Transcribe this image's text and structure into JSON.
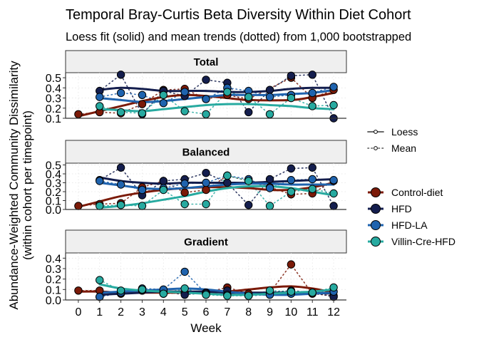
{
  "title": "Temporal Bray-Curtis Beta Diversity Within Diet Cohort",
  "subtitle": "Loess fit (solid) and mean trends (dotted) from 1,000 bootstrapped",
  "chart_data": {
    "type": "line",
    "title": "Temporal Bray-Curtis Beta Diversity Within Diet Cohort",
    "subtitle": "Loess fit (solid) and mean trends (dotted) from 1,000 bootstrapped",
    "xlabel": "Week",
    "ylabel_line1": "Abundance-Weighted Community Dissimilarity",
    "ylabel_line2": "(within cohort per timepoint)",
    "x": [
      0,
      1,
      2,
      3,
      4,
      5,
      6,
      7,
      8,
      9,
      10,
      11,
      12
    ],
    "x_ticks": [
      "0",
      "1",
      "2",
      "3",
      "4",
      "5",
      "6",
      "7",
      "8",
      "9",
      "10",
      "11",
      "12"
    ],
    "legend_line": {
      "entries": [
        {
          "label": "Loess",
          "style": "solid"
        },
        {
          "label": "Mean",
          "style": "dotted"
        }
      ]
    },
    "legend_cohort": {
      "entries": [
        {
          "label": "Control-diet",
          "color": "#7B1A08"
        },
        {
          "label": "HFD",
          "color": "#141E4E"
        },
        {
          "label": "HFD-LA",
          "color": "#1F63AE"
        },
        {
          "label": "Villin-Cre-HFD",
          "color": "#27AAA0"
        }
      ]
    },
    "panels": [
      {
        "title": "Total",
        "ylim": [
          0.1,
          0.55
        ],
        "yticks": [
          0.1,
          0.2,
          0.3,
          0.4,
          0.5
        ],
        "ytick_labels": [
          "0.1",
          "0.2",
          "0.3",
          "0.4",
          "0.5"
        ],
        "series": [
          {
            "name": "Control-diet",
            "color": "#7B1A08",
            "x": [
              0,
              1,
              2,
              3,
              4,
              5,
              6,
              7,
              8,
              10,
              11,
              12
            ],
            "mean": [
              0.14,
              0.16,
              0.15,
              0.24,
              0.38,
              0.39,
              0.29,
              0.33,
              0.29,
              0.5,
              0.3,
              0.38
            ],
            "loess": [
              0.12,
              0.17,
              0.22,
              0.27,
              0.31,
              0.33,
              0.32,
              0.3,
              0.28,
              0.28,
              0.31,
              0.35
            ]
          },
          {
            "name": "HFD",
            "color": "#141E4E",
            "x": [
              1,
              2,
              3,
              4,
              5,
              6,
              7,
              8,
              9,
              10,
              11,
              12
            ],
            "mean": [
              0.37,
              0.53,
              0.14,
              0.37,
              0.32,
              0.48,
              0.45,
              0.16,
              0.38,
              0.52,
              0.53,
              0.1
            ],
            "loess": [
              0.38,
              0.4,
              0.39,
              0.37,
              0.37,
              0.37,
              0.36,
              0.36,
              0.37,
              0.39,
              0.4,
              0.4
            ]
          },
          {
            "name": "HFD-LA",
            "color": "#1F63AE",
            "x": [
              1,
              2,
              3,
              4,
              5,
              6,
              7,
              8,
              9,
              10,
              11,
              12
            ],
            "mean": [
              0.31,
              0.35,
              0.33,
              0.25,
              0.36,
              0.29,
              0.4,
              0.37,
              0.31,
              0.33,
              0.35,
              0.41
            ],
            "loess": [
              0.3,
              0.28,
              0.26,
              0.27,
              0.29,
              0.31,
              0.33,
              0.33,
              0.33,
              0.34,
              0.35,
              0.38
            ]
          },
          {
            "name": "Villin-Cre-HFD",
            "color": "#27AAA0",
            "x": [
              1,
              2,
              3,
              4,
              5,
              6,
              7,
              8,
              9,
              10,
              11,
              12
            ],
            "mean": [
              0.22,
              0.16,
              0.15,
              0.33,
              0.17,
              0.14,
              0.36,
              0.31,
              0.14,
              0.3,
              0.22,
              0.23
            ],
            "loess": [
              0.19,
              0.18,
              0.17,
              0.19,
              0.21,
              0.23,
              0.24,
              0.24,
              0.23,
              0.22,
              0.2,
              0.19
            ]
          }
        ]
      },
      {
        "title": "Balanced",
        "ylim": [
          0.0,
          0.52
        ],
        "yticks": [
          0.0,
          0.1,
          0.2,
          0.3,
          0.4,
          0.5
        ],
        "ytick_labels": [
          "0.0",
          "0.1",
          "0.2",
          "0.3",
          "0.4",
          "0.5"
        ],
        "series": [
          {
            "name": "Control-diet",
            "color": "#7B1A08",
            "x": [
              0,
              1,
              2,
              3,
              4,
              5,
              6,
              7,
              8,
              9,
              10,
              11,
              12
            ],
            "mean": [
              0.04,
              0.06,
              0.07,
              0.25,
              0.32,
              0.19,
              0.22,
              0.38,
              0.32,
              0.25,
              0.17,
              0.18,
              0.32
            ],
            "loess": [
              0.03,
              0.09,
              0.15,
              0.19,
              0.22,
              0.24,
              0.25,
              0.25,
              0.24,
              0.22,
              0.22,
              0.25,
              0.3
            ]
          },
          {
            "name": "HFD",
            "color": "#141E4E",
            "x": [
              1,
              2,
              3,
              4,
              5,
              6,
              7,
              8,
              9,
              10,
              11,
              12
            ],
            "mean": [
              0.33,
              0.47,
              0.16,
              0.32,
              0.34,
              0.41,
              0.3,
              0.05,
              0.34,
              0.46,
              0.47,
              0.04
            ],
            "loess": [
              0.36,
              0.32,
              0.3,
              0.29,
              0.3,
              0.3,
              0.3,
              0.3,
              0.31,
              0.32,
              0.33,
              0.34
            ]
          },
          {
            "name": "HFD-LA",
            "color": "#1F63AE",
            "x": [
              1,
              2,
              3,
              4,
              5,
              6,
              7,
              8,
              9,
              10,
              11,
              12
            ],
            "mean": [
              0.32,
              0.28,
              0.22,
              0.24,
              0.29,
              0.3,
              0.38,
              0.34,
              0.24,
              0.33,
              0.34,
              0.33
            ],
            "loess": [
              0.3,
              0.27,
              0.24,
              0.23,
              0.24,
              0.26,
              0.28,
              0.29,
              0.29,
              0.28,
              0.28,
              0.28
            ]
          },
          {
            "name": "Villin-Cre-HFD",
            "color": "#27AAA0",
            "x": [
              1,
              2,
              3,
              4,
              5,
              6,
              7,
              8,
              9,
              10,
              11,
              12
            ],
            "mean": [
              0.04,
              0.05,
              0.04,
              0.22,
              0.06,
              0.06,
              0.38,
              0.32,
              0.04,
              0.2,
              0.23,
              0.18
            ],
            "loess": [
              0.02,
              0.04,
              0.07,
              0.11,
              0.15,
              0.2,
              0.24,
              0.26,
              0.26,
              0.24,
              0.2,
              0.16
            ]
          }
        ]
      },
      {
        "title": "Gradient",
        "ylim": [
          0.0,
          0.45
        ],
        "yticks": [
          0.0,
          0.1,
          0.2,
          0.3,
          0.4
        ],
        "ytick_labels": [
          "0.0",
          "0.1",
          "0.2",
          "0.3",
          "0.4"
        ],
        "series": [
          {
            "name": "Control-diet",
            "color": "#7B1A08",
            "x": [
              0,
              1,
              2,
              3,
              4,
              5,
              6,
              7,
              8,
              9,
              10,
              11,
              12
            ],
            "mean": [
              0.09,
              0.09,
              0.06,
              0.09,
              0.06,
              0.07,
              0.07,
              0.12,
              0.06,
              0.07,
              0.34,
              0.06,
              0.04
            ],
            "loess": [
              0.08,
              0.08,
              0.07,
              0.07,
              0.07,
              0.07,
              0.07,
              0.08,
              0.1,
              0.12,
              0.13,
              0.11,
              0.07
            ]
          },
          {
            "name": "HFD",
            "color": "#141E4E",
            "x": [
              1,
              2,
              3,
              4,
              5,
              6,
              7,
              8,
              9,
              10,
              11,
              12
            ],
            "mean": [
              0.03,
              0.07,
              0.09,
              0.08,
              0.05,
              0.07,
              0.09,
              0.04,
              0.07,
              0.09,
              0.07,
              0.03
            ],
            "loess": [
              0.05,
              0.06,
              0.07,
              0.08,
              0.08,
              0.08,
              0.07,
              0.07,
              0.07,
              0.07,
              0.07,
              0.06
            ]
          },
          {
            "name": "HFD-LA",
            "color": "#1F63AE",
            "x": [
              1,
              2,
              3,
              4,
              5,
              6,
              7,
              8,
              9,
              10,
              11,
              12
            ],
            "mean": [
              0.03,
              0.07,
              0.11,
              0.1,
              0.27,
              0.06,
              0.05,
              0.04,
              0.05,
              0.06,
              0.07,
              0.08
            ],
            "loess": [
              0.07,
              0.08,
              0.09,
              0.1,
              0.11,
              0.1,
              0.08,
              0.06,
              0.05,
              0.05,
              0.06,
              0.07
            ]
          },
          {
            "name": "Villin-Cre-HFD",
            "color": "#27AAA0",
            "x": [
              1,
              2,
              3,
              4,
              5,
              6,
              7,
              8,
              9,
              10,
              11,
              12
            ],
            "mean": [
              0.19,
              0.09,
              0.1,
              0.06,
              0.11,
              0.05,
              0.04,
              0.04,
              0.09,
              0.08,
              0.07,
              0.12
            ],
            "loess": [
              0.15,
              0.11,
              0.09,
              0.08,
              0.07,
              0.06,
              0.05,
              0.05,
              0.06,
              0.07,
              0.08,
              0.1
            ]
          }
        ]
      }
    ]
  }
}
